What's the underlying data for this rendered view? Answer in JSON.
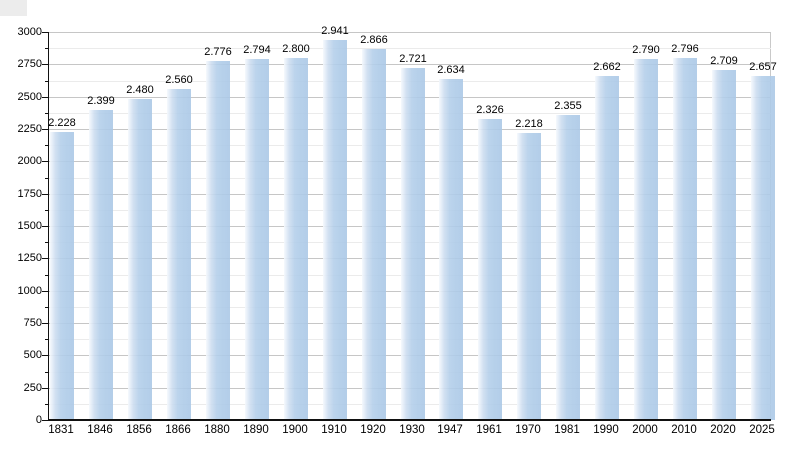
{
  "chart_data": {
    "type": "bar",
    "title": "",
    "xlabel": "",
    "ylabel": "",
    "categories": [
      "1831",
      "1846",
      "1856",
      "1866",
      "1880",
      "1890",
      "1900",
      "1910",
      "1920",
      "1930",
      "1947",
      "1961",
      "1970",
      "1981",
      "1990",
      "2000",
      "2010",
      "2020",
      "2025"
    ],
    "values": [
      2228,
      2399,
      2480,
      2560,
      2776,
      2794,
      2800,
      2941,
      2866,
      2721,
      2634,
      2326,
      2218,
      2355,
      2662,
      2790,
      2796,
      2709,
      2657
    ],
    "value_labels": [
      "2.228",
      "2.399",
      "2.480",
      "2.560",
      "2.776",
      "2.794",
      "2.800",
      "2.941",
      "2.866",
      "2.721",
      "2.634",
      "2.326",
      "2.218",
      "2.355",
      "2.662",
      "2.790",
      "2.796",
      "2.709",
      "2.657"
    ],
    "ylim": [
      0,
      3000
    ],
    "y_major_step": 250,
    "y_minor_step": 125,
    "y_tick_labels": [
      "0",
      "250",
      "500",
      "750",
      "1000",
      "1250",
      "1500",
      "1750",
      "2000",
      "2250",
      "2500",
      "2750",
      "3000"
    ],
    "grid": "on",
    "legend": "none",
    "colors": {
      "bar_fill": "#aecbe8",
      "bar_highlight": "#f5f9fd",
      "major_gridline": "#c6c6c6",
      "minor_gridline": "#ebebeb",
      "axis": "#111111",
      "text": "#000000",
      "background": "#ffffff",
      "corner_artifact": "#ececec"
    }
  }
}
